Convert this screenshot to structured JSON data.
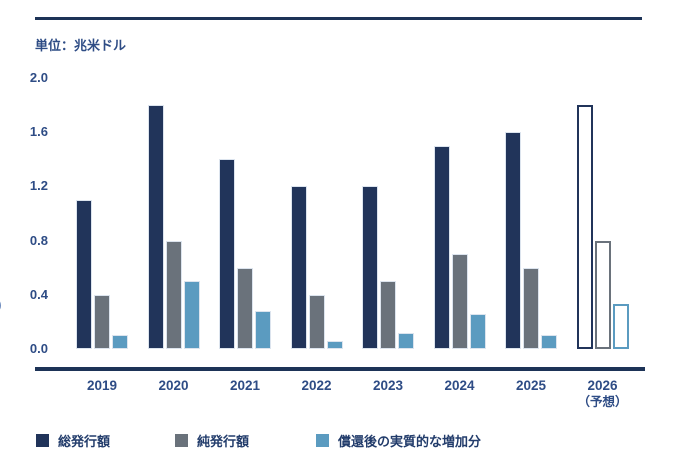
{
  "unit_label": "単位：兆米ドル",
  "stray_glyph": ")",
  "colors": {
    "axis_rule": "#1d3357",
    "text": "#2e4c85",
    "legend_text": "#223c6b",
    "series_total": "#21345a",
    "series_net": "#6a727b",
    "series_effective": "#5b9bc0",
    "bar_edge": "#dce4ee",
    "background": "#ffffff"
  },
  "chart_data": {
    "type": "bar",
    "title": "",
    "unit_label": "単位：兆米ドル",
    "categories": [
      "2019",
      "2020",
      "2021",
      "2022",
      "2023",
      "2024",
      "2025",
      "2026"
    ],
    "category_note": {
      "category": "2026",
      "text": "（予想）"
    },
    "series": [
      {
        "name": "総発行額",
        "color": "#21345a",
        "values": [
          1.1,
          1.8,
          1.4,
          1.2,
          1.2,
          1.5,
          1.6,
          1.8
        ]
      },
      {
        "name": "純発行額",
        "color": "#6a727b",
        "values": [
          0.4,
          0.8,
          0.6,
          0.4,
          0.5,
          0.7,
          0.6,
          0.8
        ]
      },
      {
        "name": "償還後の実質的な増加分",
        "color": "#5b9bc0",
        "values": [
          0.1,
          0.5,
          0.28,
          0.06,
          0.12,
          0.26,
          0.1,
          0.33
        ]
      }
    ],
    "forecast_category": "2026",
    "forecast_style": "hollow",
    "y_ticks": [
      "2.0",
      "1.6",
      "1.2",
      "0.8",
      "0.4",
      "0.0"
    ],
    "ylim": [
      0,
      2.0
    ],
    "xlabel": "",
    "ylabel": "",
    "grid": false,
    "legend_position": "bottom"
  }
}
